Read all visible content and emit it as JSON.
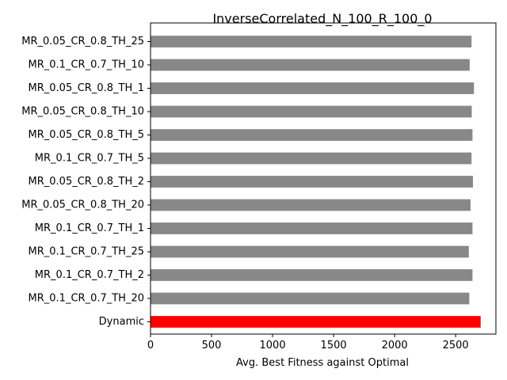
{
  "chart_data": {
    "type": "bar",
    "orientation": "horizontal",
    "title": "InverseCorrelated_N_100_R_100_0",
    "xlabel": "Avg. Best Fitness against Optimal",
    "ylabel": "",
    "xlim": [
      0,
      2830
    ],
    "xticks": [
      0,
      500,
      1000,
      1500,
      2000,
      2500
    ],
    "grid": false,
    "categories": [
      "MR_0.05_CR_0.8_TH_25",
      "MR_0.1_CR_0.7_TH_10",
      "MR_0.05_CR_0.8_TH_1",
      "MR_0.05_CR_0.8_TH_10",
      "MR_0.05_CR_0.8_TH_5",
      "MR_0.1_CR_0.7_TH_5",
      "MR_0.05_CR_0.8_TH_2",
      "MR_0.05_CR_0.8_TH_20",
      "MR_0.1_CR_0.7_TH_1",
      "MR_0.1_CR_0.7_TH_25",
      "MR_0.1_CR_0.7_TH_2",
      "MR_0.1_CR_0.7_TH_20",
      "Dynamic"
    ],
    "values": [
      2630,
      2615,
      2650,
      2632,
      2638,
      2630,
      2642,
      2622,
      2638,
      2608,
      2638,
      2612,
      2705
    ],
    "bar_colors": [
      "#888888",
      "#888888",
      "#888888",
      "#888888",
      "#888888",
      "#888888",
      "#888888",
      "#888888",
      "#888888",
      "#888888",
      "#888888",
      "#888888",
      "#ff0000"
    ]
  }
}
